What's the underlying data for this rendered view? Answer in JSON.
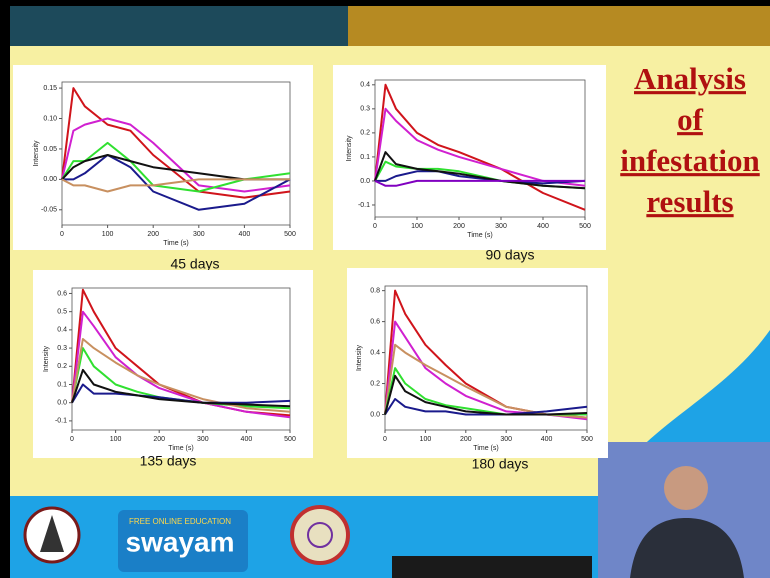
{
  "slide": {
    "title_lines": [
      "Analysis",
      "of",
      "infestation",
      "results"
    ],
    "logos": {
      "tagline": "FREE ONLINE EDUCATION",
      "name": "swayam"
    }
  },
  "chart_data": [
    {
      "type": "line",
      "title": "45 days",
      "xlabel": "Time (s)",
      "ylabel": "Intensity",
      "x": [
        0,
        25,
        50,
        100,
        150,
        200,
        300,
        400,
        500
      ],
      "xlim": [
        0,
        500
      ],
      "xticks": [
        0,
        100,
        200,
        300,
        400,
        500
      ],
      "ylim": [
        -0.075,
        0.16
      ],
      "yticks": [
        {
          "value": -0.05,
          "label": "-0.05"
        },
        {
          "value": 0,
          "label": "0.00"
        },
        0.05,
        {
          "value": 0.1,
          "label": "0.10"
        },
        0.15
      ],
      "series": [
        {
          "color": "#d0141b",
          "values": [
            0,
            0.15,
            0.12,
            0.09,
            0.08,
            0.04,
            -0.02,
            -0.03,
            -0.02
          ]
        },
        {
          "color": "#d020d0",
          "values": [
            0,
            0.08,
            0.09,
            0.1,
            0.09,
            0.06,
            -0.01,
            -0.02,
            -0.01
          ]
        },
        {
          "color": "#30e030",
          "values": [
            0,
            0.03,
            0.03,
            0.06,
            0.03,
            -0.01,
            -0.02,
            0,
            0.01
          ]
        },
        {
          "color": "#1a1a8c",
          "values": [
            0,
            0,
            0.01,
            0.04,
            0.02,
            -0.02,
            -0.05,
            -0.04,
            0
          ]
        },
        {
          "color": "#111111",
          "values": [
            0,
            0.02,
            0.03,
            0.04,
            0.03,
            0.02,
            0.01,
            0,
            0
          ]
        },
        {
          "color": "#c89060",
          "values": [
            0,
            -0.01,
            -0.01,
            -0.02,
            -0.01,
            -0.01,
            0,
            0,
            0
          ]
        }
      ]
    },
    {
      "type": "line",
      "title": "90 days",
      "xlabel": "Time (s)",
      "ylabel": "Intensity",
      "x": [
        0,
        25,
        50,
        100,
        150,
        200,
        300,
        400,
        500
      ],
      "xlim": [
        0,
        500
      ],
      "xticks": [
        0,
        100,
        200,
        300,
        400,
        500
      ],
      "ylim": [
        -0.15,
        0.42
      ],
      "yticks": [
        -0.1,
        {
          "value": 0,
          "label": "0.0"
        },
        0.1,
        0.2,
        0.3,
        0.4
      ],
      "series": [
        {
          "color": "#d0141b",
          "values": [
            0,
            0.4,
            0.3,
            0.2,
            0.15,
            0.12,
            0.05,
            -0.05,
            -0.12
          ]
        },
        {
          "color": "#d020d0",
          "values": [
            0,
            0.3,
            0.25,
            0.17,
            0.13,
            0.1,
            0.05,
            0,
            -0.02
          ]
        },
        {
          "color": "#30e030",
          "values": [
            0,
            0.08,
            0.06,
            0.05,
            0.05,
            0.04,
            0,
            -0.02,
            -0.03
          ]
        },
        {
          "color": "#1a1a8c",
          "values": [
            0,
            0,
            0.02,
            0.04,
            0.04,
            0.02,
            0,
            -0.01,
            0
          ]
        },
        {
          "color": "#111111",
          "values": [
            0,
            0.12,
            0.07,
            0.05,
            0.04,
            0.03,
            0,
            -0.02,
            -0.03
          ]
        },
        {
          "color": "#8000c0",
          "values": [
            0,
            -0.02,
            -0.02,
            0,
            0,
            0,
            0,
            0,
            0
          ]
        }
      ]
    },
    {
      "type": "line",
      "title": "135 days",
      "xlabel": "Time (s)",
      "ylabel": "Intensity",
      "x": [
        0,
        25,
        50,
        100,
        150,
        200,
        300,
        400,
        500
      ],
      "xlim": [
        0,
        500
      ],
      "xticks": [
        0,
        100,
        200,
        300,
        400,
        500
      ],
      "ylim": [
        -0.15,
        0.63
      ],
      "yticks": [
        -0.1,
        {
          "value": 0,
          "label": "0.0"
        },
        0.1,
        0.2,
        0.3,
        0.4,
        0.5,
        0.6
      ],
      "series": [
        {
          "color": "#d0141b",
          "values": [
            0,
            0.62,
            0.5,
            0.3,
            0.2,
            0.1,
            0,
            -0.05,
            -0.07
          ]
        },
        {
          "color": "#d020d0",
          "values": [
            0,
            0.5,
            0.42,
            0.25,
            0.15,
            0.08,
            0,
            -0.05,
            -0.08
          ]
        },
        {
          "color": "#30e030",
          "values": [
            0,
            0.3,
            0.2,
            0.1,
            0.06,
            0.03,
            0,
            -0.02,
            -0.03
          ]
        },
        {
          "color": "#c89060",
          "values": [
            0,
            0.35,
            0.3,
            0.22,
            0.15,
            0.1,
            0.02,
            -0.03,
            -0.05
          ]
        },
        {
          "color": "#1a1a8c",
          "values": [
            0,
            0.1,
            0.05,
            0.05,
            0.04,
            0.03,
            0,
            0,
            0.01
          ]
        },
        {
          "color": "#111111",
          "values": [
            0,
            0.18,
            0.1,
            0.06,
            0.04,
            0.02,
            0,
            -0.01,
            -0.02
          ]
        }
      ]
    },
    {
      "type": "line",
      "title": "180 days",
      "xlabel": "Time (s)",
      "ylabel": "Intensity",
      "x": [
        0,
        25,
        50,
        100,
        150,
        200,
        300,
        400,
        500
      ],
      "xlim": [
        0,
        500
      ],
      "xticks": [
        0,
        100,
        200,
        300,
        400,
        500
      ],
      "ylim": [
        -0.1,
        0.83
      ],
      "yticks": [
        {
          "value": 0,
          "label": "0.0"
        },
        0.2,
        0.4,
        0.6,
        0.8
      ],
      "series": [
        {
          "color": "#d0141b",
          "values": [
            0,
            0.8,
            0.65,
            0.45,
            0.32,
            0.2,
            0.05,
            0,
            -0.02
          ]
        },
        {
          "color": "#d020d0",
          "values": [
            0,
            0.6,
            0.5,
            0.3,
            0.2,
            0.12,
            0.02,
            0,
            -0.03
          ]
        },
        {
          "color": "#c89060",
          "values": [
            0,
            0.45,
            0.4,
            0.32,
            0.25,
            0.18,
            0.05,
            0,
            -0.02
          ]
        },
        {
          "color": "#30e030",
          "values": [
            0,
            0.3,
            0.2,
            0.1,
            0.06,
            0.04,
            0,
            0,
            0
          ]
        },
        {
          "color": "#1a1a8c",
          "values": [
            0,
            0.1,
            0.05,
            0.02,
            0.02,
            0,
            0,
            0.02,
            0.05
          ]
        },
        {
          "color": "#111111",
          "values": [
            0,
            0.25,
            0.15,
            0.08,
            0.05,
            0.02,
            0,
            0,
            0.01
          ]
        }
      ]
    }
  ]
}
